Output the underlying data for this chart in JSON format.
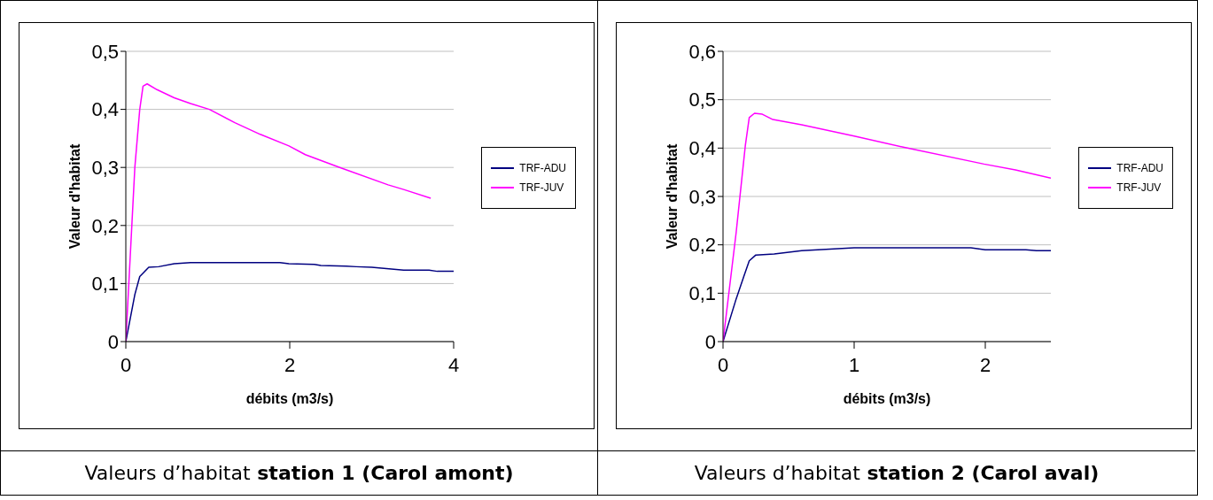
{
  "chart_data": [
    {
      "type": "line",
      "xlabel": "débits (m3/s)",
      "ylabel": "Valeur d'habitat",
      "xlim": [
        0,
        4
      ],
      "xticks": [
        0,
        2,
        4
      ],
      "ylim": [
        0,
        0.5
      ],
      "yticks": [
        0,
        {
          "value": 0.1,
          "label": "0,1"
        },
        {
          "value": 0.2,
          "label": "0,2"
        },
        {
          "value": 0.3,
          "label": "0,3"
        },
        {
          "value": 0.4,
          "label": "0,4"
        },
        {
          "value": 0.5,
          "label": "0,5"
        }
      ],
      "grid": "y",
      "legend": "right",
      "marker": "none",
      "series": [
        {
          "name": "TRF-ADU",
          "color": "#000080",
          "x": [
            0,
            0.11,
            0.17,
            0.28,
            0.4,
            0.59,
            0.79,
            1.88,
            1.99,
            2.3,
            2.38,
            2.69,
            2.81,
            3.0,
            3.39,
            3.7,
            3.8,
            4
          ],
          "values": [
            0,
            0.081,
            0.112,
            0.128,
            0.129,
            0.134,
            0.136,
            0.136,
            0.134,
            0.133,
            0.131,
            0.13,
            0.129,
            0.128,
            0.123,
            0.123,
            0.121,
            0.121
          ]
        },
        {
          "name": "TRF-JUV",
          "color": "#ff00ff",
          "x": [
            0,
            0.11,
            0.17,
            0.21,
            0.26,
            0.38,
            0.59,
            0.79,
            1.02,
            1.33,
            1.64,
            1.99,
            2.19,
            2.61,
            3.2,
            3.39,
            3.72
          ],
          "values": [
            0,
            0.3,
            0.4,
            0.44,
            0.444,
            0.434,
            0.42,
            0.41,
            0.4,
            0.377,
            0.357,
            0.337,
            0.322,
            0.3,
            0.27,
            0.262,
            0.247
          ]
        }
      ],
      "annotations": [
        "Valeurs d’habitat",
        "station 1 (Carol amont)"
      ]
    },
    {
      "type": "line",
      "xlabel": "débits (m3/s)",
      "ylabel": "Valeur d'habitat",
      "xlim": [
        0,
        2.5
      ],
      "xticks": [
        0,
        1,
        2
      ],
      "ylim": [
        0,
        0.6
      ],
      "yticks": [
        0,
        {
          "value": 0.1,
          "label": "0,1"
        },
        {
          "value": 0.2,
          "label": "0,2"
        },
        {
          "value": 0.3,
          "label": "0,3"
        },
        {
          "value": 0.4,
          "label": "0,4"
        },
        {
          "value": 0.5,
          "label": "0,5"
        },
        {
          "value": 0.6,
          "label": "0,6"
        }
      ],
      "grid": "y",
      "legend": "right",
      "marker": "none",
      "series": [
        {
          "name": "TRF-ADU",
          "color": "#000080",
          "x": [
            0,
            0.1,
            0.16,
            0.2,
            0.25,
            0.39,
            0.6,
            1.0,
            1.89,
            2.0,
            2.31,
            2.39,
            2.5
          ],
          "values": [
            0,
            0.088,
            0.136,
            0.167,
            0.179,
            0.181,
            0.188,
            0.194,
            0.194,
            0.19,
            0.19,
            0.188,
            0.188
          ]
        },
        {
          "name": "TRF-JUV",
          "color": "#ff00ff",
          "x": [
            0,
            0.1,
            0.17,
            0.2,
            0.24,
            0.3,
            0.38,
            0.6,
            1.0,
            1.39,
            1.99,
            2.23,
            2.5
          ],
          "values": [
            0,
            0.225,
            0.405,
            0.463,
            0.472,
            0.47,
            0.459,
            0.448,
            0.425,
            0.401,
            0.367,
            0.355,
            0.338
          ]
        }
      ],
      "annotations": [
        "Valeurs d’habitat",
        "station 2 (Carol aval)"
      ]
    }
  ]
}
